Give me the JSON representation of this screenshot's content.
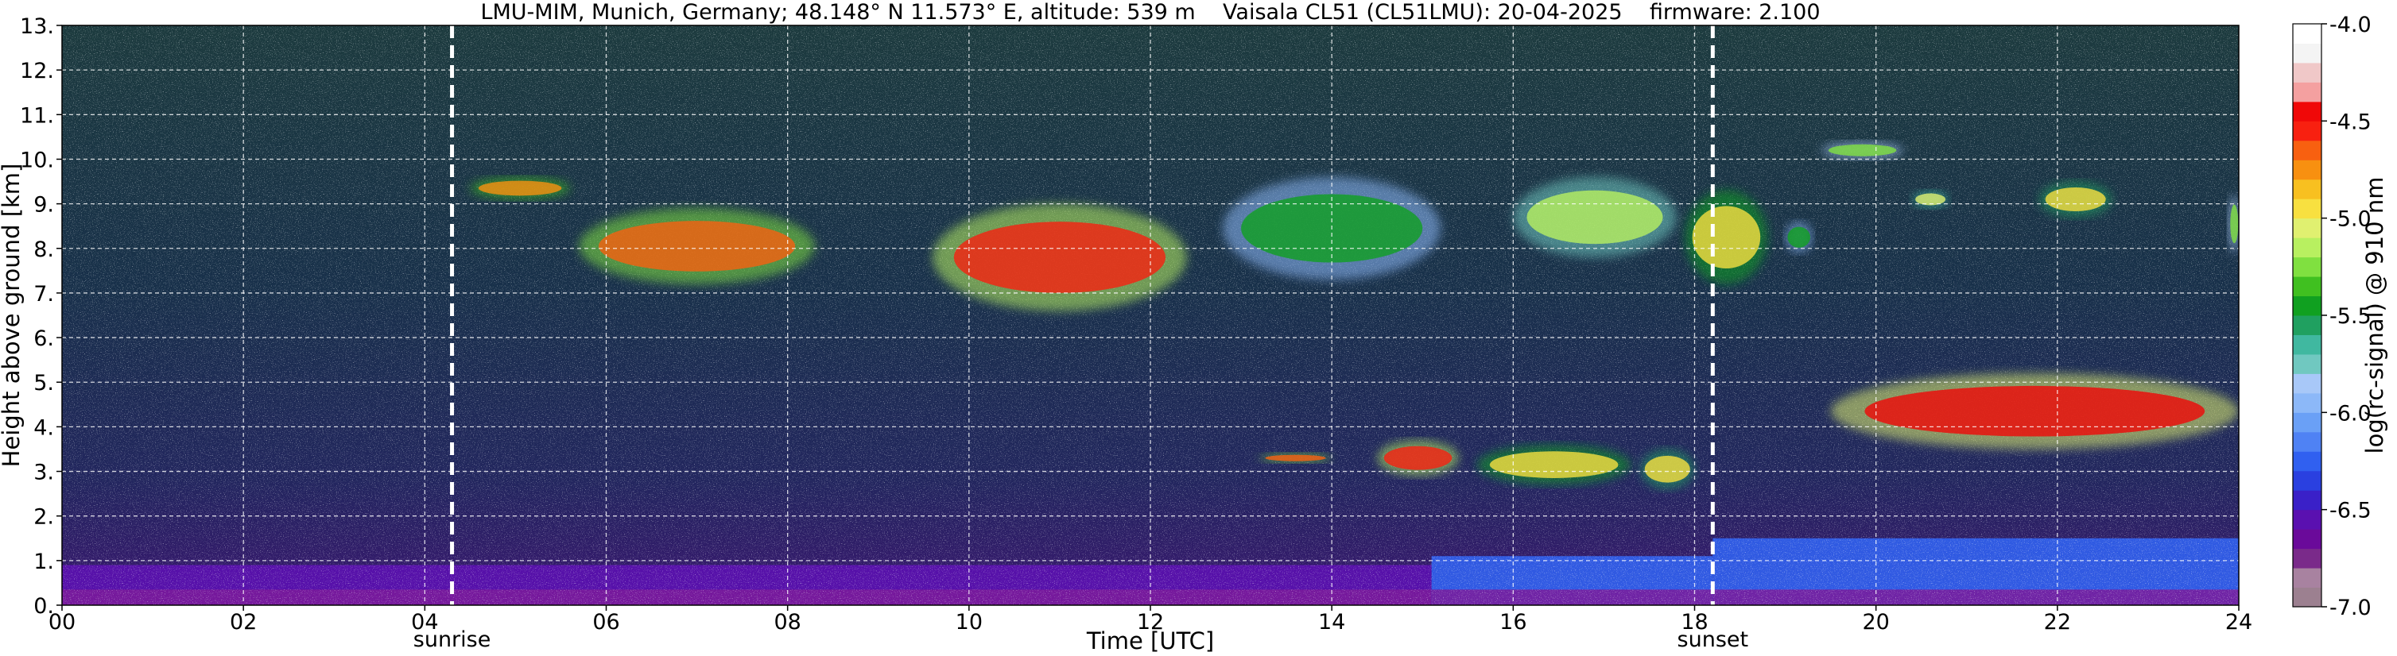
{
  "chart_data": {
    "type": "heatmap",
    "title": "LMU-MIM, Munich, Germany; 48.148° N 11.573° E, altitude: 539 m    Vaisala CL51 (CL51LMU): 20-04-2025    firmware: 2.100",
    "xlabel": "Time [UTC]",
    "ylabel": "Height above ground [km]",
    "xlim": [
      0,
      24
    ],
    "ylim": [
      0,
      13
    ],
    "x_ticks": [
      "00",
      "02",
      "04",
      "06",
      "08",
      "10",
      "12",
      "14",
      "16",
      "18",
      "20",
      "22",
      "24"
    ],
    "x_tick_values": [
      0,
      2,
      4,
      6,
      8,
      10,
      12,
      14,
      16,
      18,
      20,
      22,
      24
    ],
    "y_ticks": [
      "0.",
      "1.",
      "2.",
      "3.",
      "4.",
      "5.",
      "6.",
      "7.",
      "8.",
      "9.",
      "10.",
      "11.",
      "12.",
      "13."
    ],
    "y_tick_values": [
      0,
      1,
      2,
      3,
      4,
      5,
      6,
      7,
      8,
      9,
      10,
      11,
      12,
      13
    ],
    "grid": true,
    "colorbar": {
      "label": "log(rc-signal) @ 910 nm",
      "range": [
        -7.0,
        -4.0
      ],
      "ticks": [
        "-4.0",
        "-4.5",
        "-5.0",
        "-5.5",
        "-6.0",
        "-6.5",
        "-7.0"
      ],
      "tick_values": [
        -4.0,
        -4.5,
        -5.0,
        -5.5,
        -6.0,
        -6.5,
        -7.0
      ],
      "colors": [
        "#9c8090",
        "#a882a0",
        "#7a2a8a",
        "#6a0a9a",
        "#5a10b0",
        "#3a20c8",
        "#2a40e0",
        "#3060f0",
        "#4f82f4",
        "#6aa0f6",
        "#8cb8f8",
        "#a8c8f8",
        "#70c8c0",
        "#40b8a0",
        "#20a060",
        "#10a020",
        "#40c020",
        "#80e040",
        "#b8f060",
        "#e0f070",
        "#f8e040",
        "#f8c020",
        "#f89010",
        "#f86010",
        "#f82010",
        "#f00808",
        "#f4a0a0",
        "#f0c8c8",
        "#f4f4f4",
        "#ffffff"
      ]
    },
    "annotations": [
      {
        "text": "sunrise",
        "x": 4.3
      },
      {
        "text": "sunset",
        "x": 18.2
      }
    ],
    "cloud_layers": [
      {
        "x_start": 4.5,
        "x_end": 5.6,
        "y_low": 9.1,
        "y_high": 9.6,
        "intensity": -4.8
      },
      {
        "x_start": 5.7,
        "x_end": 8.3,
        "y_low": 7.2,
        "y_high": 8.9,
        "intensity": -4.7
      },
      {
        "x_start": 9.6,
        "x_end": 12.4,
        "y_low": 6.6,
        "y_high": 9.0,
        "intensity": -4.6
      },
      {
        "x_start": 12.8,
        "x_end": 15.2,
        "y_low": 7.3,
        "y_high": 9.6,
        "intensity": -5.4
      },
      {
        "x_start": 16.0,
        "x_end": 17.8,
        "y_low": 7.8,
        "y_high": 9.6,
        "intensity": -5.2
      },
      {
        "x_start": 17.9,
        "x_end": 18.8,
        "y_low": 7.2,
        "y_high": 9.3,
        "intensity": -4.9
      },
      {
        "x_start": 19.0,
        "x_end": 19.3,
        "y_low": 7.9,
        "y_high": 8.6,
        "intensity": -5.4
      },
      {
        "x_start": 19.4,
        "x_end": 20.3,
        "y_low": 10.0,
        "y_high": 10.4,
        "intensity": -5.3
      },
      {
        "x_start": 20.4,
        "x_end": 20.8,
        "y_low": 8.9,
        "y_high": 9.3,
        "intensity": -5.1
      },
      {
        "x_start": 21.8,
        "x_end": 22.6,
        "y_low": 8.7,
        "y_high": 9.5,
        "intensity": -5.0
      },
      {
        "x_start": 23.9,
        "x_end": 24.0,
        "y_low": 7.9,
        "y_high": 9.2,
        "intensity": -5.3
      },
      {
        "x_start": 14.5,
        "x_end": 15.4,
        "y_low": 2.9,
        "y_high": 3.7,
        "intensity": -4.6
      },
      {
        "x_start": 15.6,
        "x_end": 17.3,
        "y_low": 2.7,
        "y_high": 3.6,
        "intensity": -4.9
      },
      {
        "x_start": 17.4,
        "x_end": 18.0,
        "y_low": 2.6,
        "y_high": 3.5,
        "intensity": -5.0
      },
      {
        "x_start": 13.2,
        "x_end": 14.0,
        "y_low": 3.2,
        "y_high": 3.4,
        "intensity": -4.7
      },
      {
        "x_start": 19.5,
        "x_end": 24.0,
        "y_low": 3.5,
        "y_high": 5.2,
        "intensity": -4.5
      }
    ],
    "boundary_layer": [
      {
        "x_start": 0,
        "x_end": 15.1,
        "y_top": 0.9,
        "intensity": -6.6
      },
      {
        "x_start": 15.1,
        "x_end": 18.2,
        "y_top": 1.1,
        "intensity": -6.2
      },
      {
        "x_start": 18.2,
        "x_end": 24,
        "y_top": 1.5,
        "intensity": -6.3
      }
    ]
  }
}
